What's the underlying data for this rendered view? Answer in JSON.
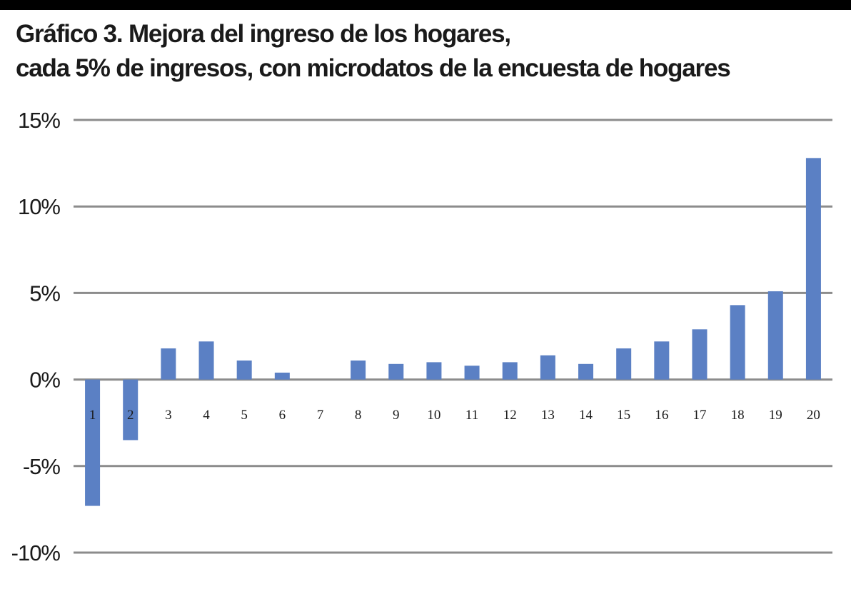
{
  "title_line1": "Gráfico 3. Mejora del ingreso de los hogares,",
  "title_line2": "cada 5% de ingresos, con microdatos de la encuesta de hogares",
  "colors": {
    "bar": "#5b80c4",
    "grid": "#8c8c8c",
    "top_bar": "#000000"
  },
  "chart_data": {
    "type": "bar",
    "title": "Gráfico 3. Mejora del ingreso de los hogares, cada 5% de ingresos, con microdatos de la encuesta de hogares",
    "xlabel": "",
    "ylabel": "",
    "categories": [
      "1",
      "2",
      "3",
      "4",
      "5",
      "6",
      "7",
      "8",
      "9",
      "10",
      "11",
      "12",
      "13",
      "14",
      "15",
      "16",
      "17",
      "18",
      "19",
      "20"
    ],
    "values": [
      -7.3,
      -3.5,
      1.8,
      2.2,
      1.1,
      0.4,
      0.0,
      1.1,
      0.9,
      1.0,
      0.8,
      1.0,
      1.4,
      0.9,
      1.8,
      2.2,
      2.9,
      4.3,
      5.1,
      12.8
    ],
    "ylim": [
      -10,
      15
    ],
    "yticks": [
      15,
      10,
      5,
      0,
      -5,
      -10
    ],
    "ytick_labels": [
      "15%",
      "10%",
      "5%",
      "0%",
      "-5%",
      "-10%"
    ],
    "grid": true,
    "legend": "none"
  }
}
